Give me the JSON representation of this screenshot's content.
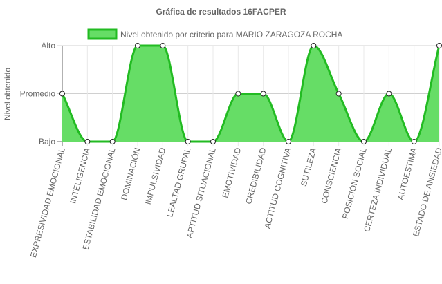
{
  "chart_data": {
    "type": "area",
    "title": "Gráfica de resultados 16FACPER",
    "ylabel": "Nivel obtenido",
    "xlabel": "",
    "y_categories": [
      "Bajo",
      "Promedio",
      "Alto"
    ],
    "ylim": [
      1,
      3
    ],
    "categories": [
      "EXPRESIVIDAD EMOCIONAL",
      "INTELIGENCIA",
      "ESTABILIDAD EMOCIONAL",
      "DOMINACIÓN",
      "IMPULSIVIDAD",
      "LEALTAD GRUPAL",
      "APTITUD SITUACIONAL",
      "EMOTIVIDAD",
      "CREDIBILIDAD",
      "ACTITUD COGNITIVA",
      "SUTILEZA",
      "CONSCIENCIA",
      "POSICIÓN SOCIAL",
      "CERTEZA INDIVIDUAL",
      "AUTOESTIMA",
      "ESTADO DE ANSIEDAD"
    ],
    "series": [
      {
        "name": "Nivel obtenido por criterio para MARIO ZARAGOZA ROCHA",
        "values": [
          2,
          1,
          1,
          3,
          3,
          1,
          1,
          2,
          2,
          1,
          3,
          2,
          1,
          2,
          1,
          3
        ],
        "fill_color": "#66dd66",
        "line_color": "#22bb22"
      }
    ],
    "grid": true,
    "legend_position": "top"
  }
}
